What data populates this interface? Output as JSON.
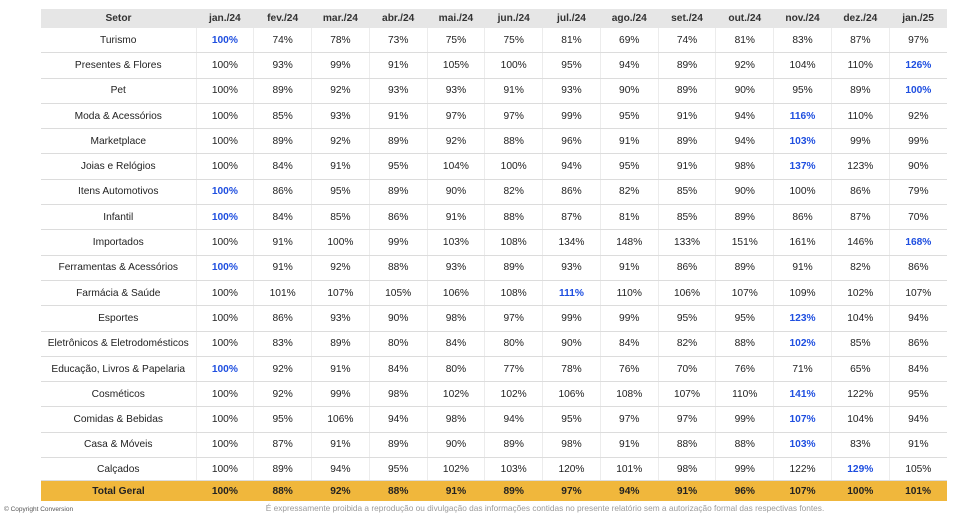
{
  "header": {
    "sector_label": "Setor",
    "months": [
      "jan./24",
      "fev./24",
      "mar./24",
      "abr./24",
      "mai./24",
      "jun./24",
      "jul./24",
      "ago./24",
      "set./24",
      "out./24",
      "nov./24",
      "dez./24",
      "jan./25"
    ]
  },
  "rows": [
    {
      "sector": "Turismo",
      "values": [
        "100%",
        "74%",
        "78%",
        "73%",
        "75%",
        "75%",
        "81%",
        "69%",
        "74%",
        "81%",
        "83%",
        "87%",
        "97%"
      ],
      "highlight": [
        0
      ]
    },
    {
      "sector": "Presentes & Flores",
      "values": [
        "100%",
        "93%",
        "99%",
        "91%",
        "105%",
        "100%",
        "95%",
        "94%",
        "89%",
        "92%",
        "104%",
        "110%",
        "126%"
      ],
      "highlight": [
        12
      ]
    },
    {
      "sector": "Pet",
      "values": [
        "100%",
        "89%",
        "92%",
        "93%",
        "93%",
        "91%",
        "93%",
        "90%",
        "89%",
        "90%",
        "95%",
        "89%",
        "100%"
      ],
      "highlight": [
        12
      ]
    },
    {
      "sector": "Moda & Acessórios",
      "values": [
        "100%",
        "85%",
        "93%",
        "91%",
        "97%",
        "97%",
        "99%",
        "95%",
        "91%",
        "94%",
        "116%",
        "110%",
        "92%"
      ],
      "highlight": [
        10
      ]
    },
    {
      "sector": "Marketplace",
      "values": [
        "100%",
        "89%",
        "92%",
        "89%",
        "92%",
        "88%",
        "96%",
        "91%",
        "89%",
        "94%",
        "103%",
        "99%",
        "99%"
      ],
      "highlight": [
        10
      ]
    },
    {
      "sector": "Joias e Relógios",
      "values": [
        "100%",
        "84%",
        "91%",
        "95%",
        "104%",
        "100%",
        "94%",
        "95%",
        "91%",
        "98%",
        "137%",
        "123%",
        "90%"
      ],
      "highlight": [
        10
      ]
    },
    {
      "sector": "Itens Automotivos",
      "values": [
        "100%",
        "86%",
        "95%",
        "89%",
        "90%",
        "82%",
        "86%",
        "82%",
        "85%",
        "90%",
        "100%",
        "86%",
        "79%"
      ],
      "highlight": [
        0
      ]
    },
    {
      "sector": "Infantil",
      "values": [
        "100%",
        "84%",
        "85%",
        "86%",
        "91%",
        "88%",
        "87%",
        "81%",
        "85%",
        "89%",
        "86%",
        "87%",
        "70%"
      ],
      "highlight": [
        0
      ]
    },
    {
      "sector": "Importados",
      "values": [
        "100%",
        "91%",
        "100%",
        "99%",
        "103%",
        "108%",
        "134%",
        "148%",
        "133%",
        "151%",
        "161%",
        "146%",
        "168%"
      ],
      "highlight": [
        12
      ]
    },
    {
      "sector": "Ferramentas & Acessórios",
      "values": [
        "100%",
        "91%",
        "92%",
        "88%",
        "93%",
        "89%",
        "93%",
        "91%",
        "86%",
        "89%",
        "91%",
        "82%",
        "86%"
      ],
      "highlight": [
        0
      ]
    },
    {
      "sector": "Farmácia & Saúde",
      "values": [
        "100%",
        "101%",
        "107%",
        "105%",
        "106%",
        "108%",
        "111%",
        "110%",
        "106%",
        "107%",
        "109%",
        "102%",
        "107%"
      ],
      "highlight": [
        6
      ]
    },
    {
      "sector": "Esportes",
      "values": [
        "100%",
        "86%",
        "93%",
        "90%",
        "98%",
        "97%",
        "99%",
        "99%",
        "95%",
        "95%",
        "123%",
        "104%",
        "94%"
      ],
      "highlight": [
        10
      ]
    },
    {
      "sector": "Eletrônicos & Eletrodomésticos",
      "values": [
        "100%",
        "83%",
        "89%",
        "80%",
        "84%",
        "80%",
        "90%",
        "84%",
        "82%",
        "88%",
        "102%",
        "85%",
        "86%"
      ],
      "highlight": [
        10
      ]
    },
    {
      "sector": "Educação, Livros & Papelaria",
      "values": [
        "100%",
        "92%",
        "91%",
        "84%",
        "80%",
        "77%",
        "78%",
        "76%",
        "70%",
        "76%",
        "71%",
        "65%",
        "84%"
      ],
      "highlight": [
        0
      ]
    },
    {
      "sector": "Cosméticos",
      "values": [
        "100%",
        "92%",
        "99%",
        "98%",
        "102%",
        "102%",
        "106%",
        "108%",
        "107%",
        "110%",
        "141%",
        "122%",
        "95%"
      ],
      "highlight": [
        10
      ]
    },
    {
      "sector": "Comidas & Bebidas",
      "values": [
        "100%",
        "95%",
        "106%",
        "94%",
        "98%",
        "94%",
        "95%",
        "97%",
        "97%",
        "99%",
        "107%",
        "104%",
        "94%"
      ],
      "highlight": [
        10
      ]
    },
    {
      "sector": "Casa & Móveis",
      "values": [
        "100%",
        "87%",
        "91%",
        "89%",
        "90%",
        "89%",
        "98%",
        "91%",
        "88%",
        "88%",
        "103%",
        "83%",
        "91%"
      ],
      "highlight": [
        10
      ]
    },
    {
      "sector": "Calçados",
      "values": [
        "100%",
        "89%",
        "94%",
        "95%",
        "102%",
        "103%",
        "120%",
        "101%",
        "98%",
        "99%",
        "122%",
        "129%",
        "105%"
      ],
      "highlight": [
        11
      ]
    }
  ],
  "total": {
    "label": "Total Geral",
    "values": [
      "100%",
      "88%",
      "92%",
      "88%",
      "91%",
      "89%",
      "97%",
      "94%",
      "91%",
      "96%",
      "107%",
      "100%",
      "101%"
    ],
    "highlight": [
      10
    ]
  },
  "footer": {
    "copyright": "© Copyright Conversion",
    "disclaimer": "É expressamente proibida a reprodução ou divulgação das informações contidas no presente relatório sem a autorização formal das respectivas fontes."
  },
  "colors": {
    "highlight": "#1f4fe0",
    "total_row": "#f0b73c",
    "header_row": "#e6e6e6"
  }
}
